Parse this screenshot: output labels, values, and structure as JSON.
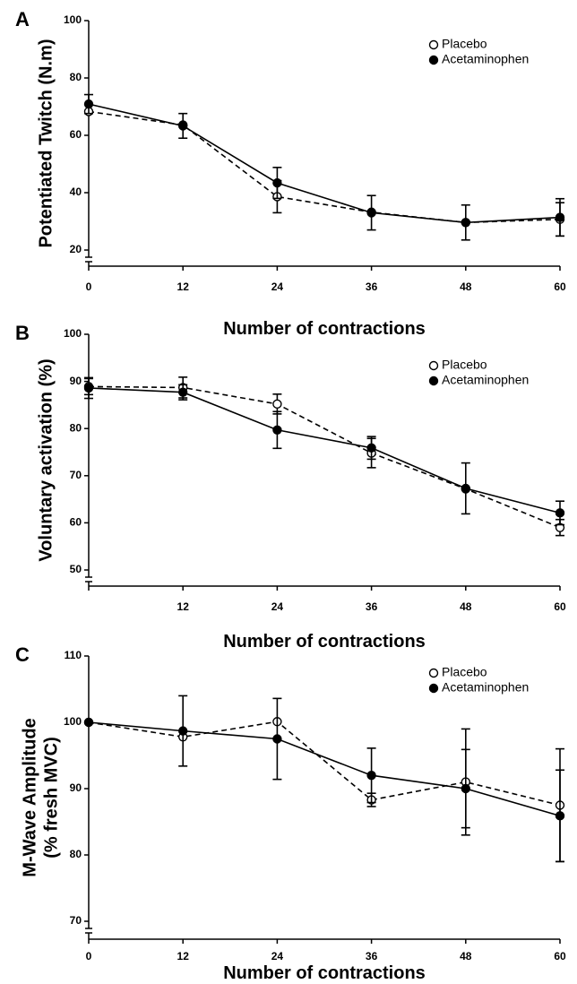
{
  "chart_data": [
    {
      "type": "line",
      "panel_letter": "A",
      "title": "",
      "xlabel": "Number of contractions",
      "ylabel": "Potentiated Twitch (N.m)",
      "ylabel2": "",
      "x": [
        0,
        12,
        24,
        36,
        48,
        60
      ],
      "x_ticks": [
        "0",
        "12",
        "24",
        "36",
        "48",
        "60"
      ],
      "y_ticks": [
        "20",
        "40",
        "60",
        "80",
        "100"
      ],
      "xlim": [
        0,
        60
      ],
      "ylim": [
        20,
        100
      ],
      "grid": false,
      "legend_position": "top-right",
      "series": [
        {
          "name": "Placebo",
          "values": [
            68.3,
            63.6,
            38.6,
            33.2,
            29.6,
            30.7
          ],
          "errors": [
            0,
            0,
            5.6,
            0,
            0,
            5.8
          ],
          "marker": "open-circle",
          "line": "dashed"
        },
        {
          "name": "Acetaminophen",
          "values": [
            70.9,
            63.3,
            43.4,
            33.0,
            29.6,
            31.4
          ],
          "errors": [
            3.3,
            4.3,
            5.4,
            6.0,
            6.1,
            6.5
          ],
          "marker": "filled-circle",
          "line": "solid"
        }
      ]
    },
    {
      "type": "line",
      "panel_letter": "B",
      "title": "",
      "xlabel": "Number of contractions",
      "ylabel": "Voluntary activation (%)",
      "ylabel2": "",
      "x": [
        0,
        12,
        24,
        36,
        48,
        60
      ],
      "x_ticks": [
        "",
        "12",
        "24",
        "36",
        "48",
        "60"
      ],
      "y_ticks": [
        "50",
        "60",
        "70",
        "80",
        "90",
        "100"
      ],
      "xlim": [
        0,
        60
      ],
      "ylim": [
        50,
        100
      ],
      "grid": false,
      "legend_position": "top-right",
      "series": [
        {
          "name": "Placebo",
          "values": [
            88.9,
            88.7,
            85.2,
            74.8,
            67.2,
            59.0
          ],
          "errors": [
            1.7,
            2.2,
            2.1,
            3.1,
            0,
            1.7
          ],
          "marker": "open-circle",
          "line": "dashed"
        },
        {
          "name": "Acetaminophen",
          "values": [
            88.6,
            87.7,
            79.7,
            75.9,
            67.3,
            62.1
          ],
          "errors": [
            2.2,
            1.6,
            3.9,
            2.4,
            5.4,
            2.5
          ],
          "marker": "filled-circle",
          "line": "solid"
        }
      ]
    },
    {
      "type": "line",
      "panel_letter": "C",
      "title": "",
      "xlabel": "Number of contractions",
      "ylabel": "M-Wave Amplitude",
      "ylabel2": "(% fresh MVC)",
      "x": [
        0,
        12,
        24,
        36,
        48,
        60
      ],
      "x_ticks": [
        "0",
        "12",
        "24",
        "36",
        "48",
        "60"
      ],
      "y_ticks": [
        "70",
        "80",
        "90",
        "100",
        "110"
      ],
      "xlim": [
        0,
        60
      ],
      "ylim": [
        70,
        110
      ],
      "grid": false,
      "legend_position": "top-right",
      "series": [
        {
          "name": "Placebo",
          "values": [
            100.0,
            97.8,
            100.1,
            88.3,
            91.0,
            87.5
          ],
          "errors": [
            0,
            0,
            0,
            1.0,
            8.0,
            8.5
          ],
          "marker": "open-circle",
          "line": "dashed"
        },
        {
          "name": "Acetaminophen",
          "values": [
            100.0,
            98.7,
            97.5,
            92.0,
            90.0,
            85.9
          ],
          "errors": [
            0,
            5.3,
            6.1,
            4.1,
            5.9,
            6.9
          ],
          "marker": "filled-circle",
          "line": "solid"
        }
      ]
    }
  ]
}
